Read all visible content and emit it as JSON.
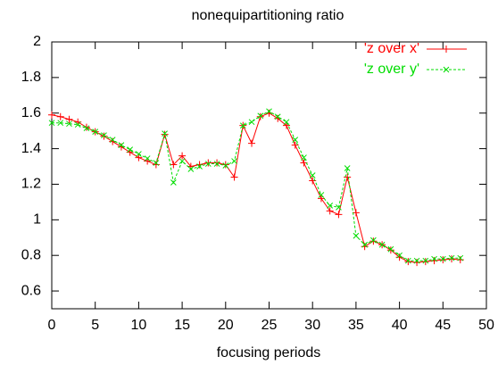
{
  "chart_data": {
    "type": "line",
    "title": "nonequipartitioning ratio",
    "xlabel": "focusing periods",
    "x": [
      0,
      1,
      2,
      3,
      4,
      5,
      6,
      7,
      8,
      9,
      10,
      11,
      12,
      13,
      14,
      15,
      16,
      17,
      18,
      19,
      20,
      21,
      22,
      23,
      24,
      25,
      26,
      27,
      28,
      29,
      30,
      31,
      32,
      33,
      34,
      35,
      36,
      37,
      38,
      39,
      40,
      41,
      42,
      43,
      44,
      45,
      46,
      47
    ],
    "series": [
      {
        "name": "'z over x'",
        "color": "#ff0000",
        "marker": "+",
        "dashed": false,
        "values": [
          1.59,
          1.58,
          1.565,
          1.55,
          1.52,
          1.495,
          1.47,
          1.44,
          1.41,
          1.38,
          1.35,
          1.33,
          1.31,
          1.48,
          1.31,
          1.36,
          1.3,
          1.31,
          1.32,
          1.32,
          1.31,
          1.24,
          1.53,
          1.43,
          1.58,
          1.6,
          1.57,
          1.53,
          1.42,
          1.32,
          1.22,
          1.12,
          1.05,
          1.03,
          1.24,
          1.04,
          0.85,
          0.88,
          0.86,
          0.83,
          0.79,
          0.765,
          0.76,
          0.765,
          0.77,
          0.775,
          0.78,
          0.775
        ]
      },
      {
        "name": "'z over y'",
        "color": "#00dd00",
        "marker": "x",
        "dashed": true,
        "values": [
          1.545,
          1.545,
          1.54,
          1.535,
          1.515,
          1.495,
          1.475,
          1.45,
          1.42,
          1.395,
          1.37,
          1.345,
          1.32,
          1.485,
          1.21,
          1.33,
          1.285,
          1.3,
          1.315,
          1.315,
          1.305,
          1.33,
          1.53,
          1.55,
          1.585,
          1.61,
          1.58,
          1.55,
          1.45,
          1.35,
          1.25,
          1.14,
          1.08,
          1.07,
          1.29,
          0.91,
          0.86,
          0.885,
          0.86,
          0.835,
          0.8,
          0.77,
          0.77,
          0.77,
          0.78,
          0.78,
          0.785,
          0.785
        ]
      }
    ],
    "xlim": [
      0,
      50
    ],
    "xticks": [
      0,
      5,
      10,
      15,
      20,
      25,
      30,
      35,
      40,
      45,
      50
    ],
    "ylim": [
      0.5,
      2
    ],
    "yticks": [
      0.6,
      0.8,
      1,
      1.2,
      1.4,
      1.6,
      1.8,
      2
    ],
    "grid": false,
    "legend": "top-right"
  }
}
